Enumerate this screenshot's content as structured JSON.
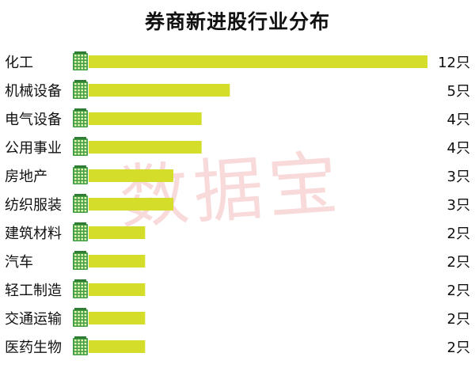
{
  "chart_data": {
    "type": "bar",
    "orientation": "horizontal",
    "title": "券商新进股行业分布",
    "categories": [
      "化工",
      "机械设备",
      "电气设备",
      "公用事业",
      "房地产",
      "纺织服装",
      "建筑材料",
      "汽车",
      "轻工制造",
      "交通运输",
      "医药生物"
    ],
    "values": [
      12,
      5,
      4,
      4,
      3,
      3,
      2,
      2,
      2,
      2,
      2
    ],
    "value_labels": [
      "12只",
      "5只",
      "4只",
      "4只",
      "3只",
      "3只",
      "2只",
      "2只",
      "2只",
      "2只",
      "2只"
    ],
    "xlim": [
      0,
      12
    ],
    "grid": false,
    "bar_color": "#d4dd2a",
    "icon_color": "#43a047",
    "icon": "building-icon"
  },
  "watermark": "数据宝"
}
